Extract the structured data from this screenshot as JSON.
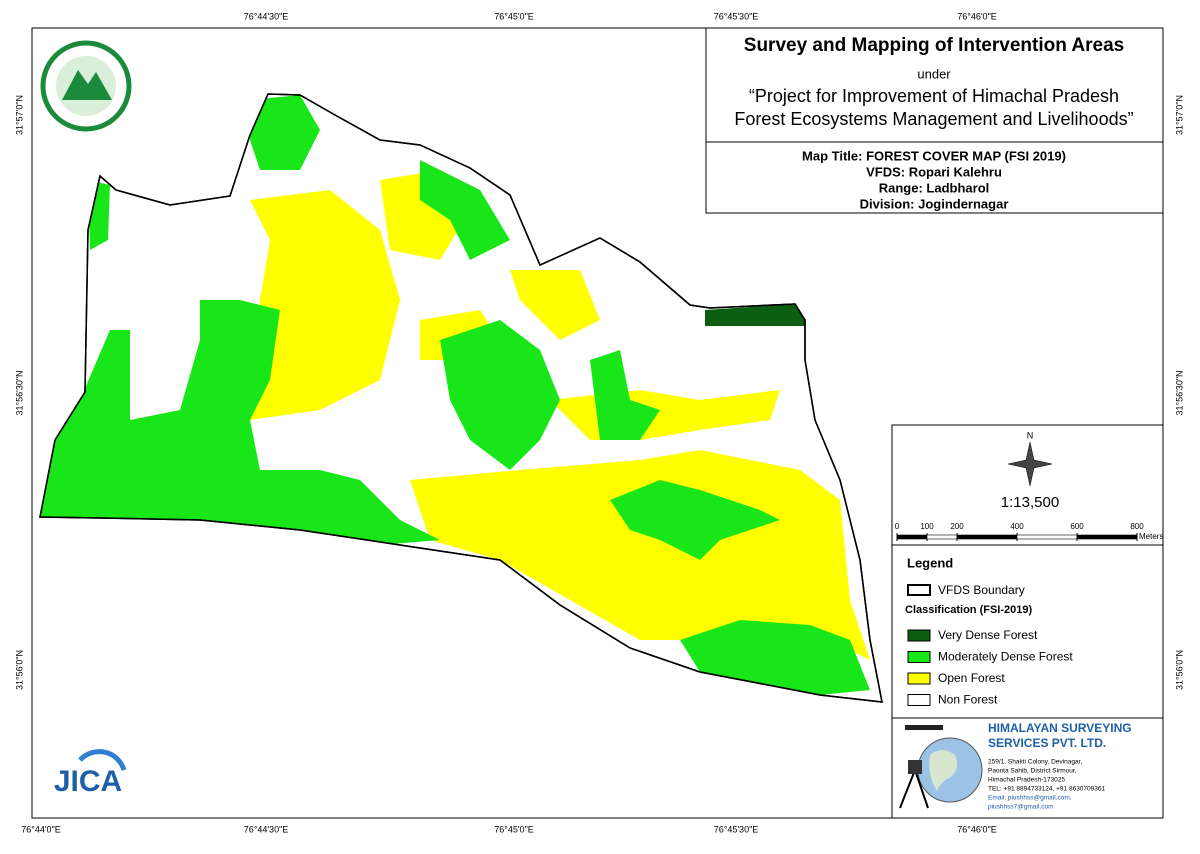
{
  "map": {
    "axis_labels": {
      "top": [
        "76°44'30\"E",
        "76°45'0\"E",
        "76°45'30\"E",
        "76°46'0\"E"
      ],
      "bottom": [
        "76°44'0\"E",
        "76°44'30\"E",
        "76°45'0\"E",
        "76°45'30\"E",
        "76°46'0\"E"
      ],
      "left": [
        "31°57'0\"N",
        "31°56'30\"N",
        "31°56'0\"N"
      ],
      "right": [
        "31°57'0\"N",
        "31°56'30\"N",
        "31°56'0\"N"
      ]
    },
    "title_block": {
      "title": "Survey and Mapping of Intervention Areas",
      "under": "under",
      "project_line1": "“Project for Improvement of Himachal Pradesh",
      "project_line2": "Forest Ecosystems Management and Livelihoods”"
    },
    "map_info": [
      "Map Title: FOREST COVER MAP (FSI 2019)",
      "VFDS: Ropari Kalehru",
      "Range: Ladbharol",
      "Division: Jogindernagar"
    ],
    "north": "N",
    "scale": "1:13,500",
    "scale_bar": {
      "ticks": [
        0,
        100,
        200,
        400,
        600,
        800
      ],
      "unit": "Meters"
    },
    "legend": {
      "title": "Legend",
      "boundary": "VFDS Boundary",
      "classification_title": "Classification (FSI-2019)",
      "classes": [
        {
          "name": "Very Dense Forest",
          "color": "#0b5e12"
        },
        {
          "name": "Moderately Dense Forest",
          "color": "#19e619"
        },
        {
          "name": "Open Forest",
          "color": "#ffff00"
        },
        {
          "name": "Non Forest",
          "color": "#ffffff"
        }
      ]
    },
    "company": {
      "name_line1": "HIMALAYAN SURVEYING",
      "name_line2": "SERVICES PVT. LTD.",
      "address": [
        "259/1, Shakti Colony, Devinagar,",
        "Paonta Sahib, District Sirmour,",
        "Himachal Pradesh-173025",
        "TEL: +91 8894733124, +91 8630709361",
        "Email: piushhss@gmail.com,",
        "piushhss7@gmail.com"
      ]
    },
    "logo_text": "JICA"
  }
}
